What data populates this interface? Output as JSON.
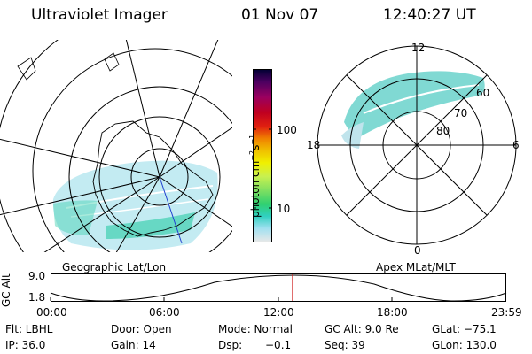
{
  "header": {
    "instrument": "Ultraviolet Imager",
    "date": "01 Nov 07",
    "time": "12:40:27 UT"
  },
  "left_panel": {
    "caption": "Geographic Lat/Lon"
  },
  "colorbar": {
    "label_main": "photon cm",
    "label_sup1": "−2",
    "label_mid": "s",
    "label_sup2": "−1",
    "tick_100": "100",
    "tick_10": "10",
    "scale": "log",
    "colors": [
      "#000033",
      "#4a0060",
      "#9a0060",
      "#c00020",
      "#e02010",
      "#f08000",
      "#f0c000",
      "#f0f000",
      "#c8f050",
      "#80e060",
      "#30d070",
      "#30d0c0",
      "#60d8e0",
      "#a0e0f0",
      "#e0e0e0"
    ]
  },
  "right_panel": {
    "caption": "Apex MLat/MLT",
    "mlt_labels": [
      "12",
      "18",
      "6",
      "0"
    ],
    "mlat_labels": [
      "60",
      "70",
      "80"
    ]
  },
  "altitude_strip": {
    "ylabel": "GC Alt",
    "y_top": "9.0",
    "y_bottom": "1.8",
    "x_ticks": [
      "00:00",
      "06:00",
      "12:00",
      "18:00",
      "23:59"
    ],
    "marker_color": "#d02020"
  },
  "info": {
    "flt": "Flt: LBHL",
    "ip": "IP: 36.0",
    "door": "Door: Open",
    "gain": "Gain: 14",
    "mode": "Mode: Normal",
    "dsp": "Dsp:",
    "dsp_val": "−0.1",
    "gcalt": "GC Alt: 9.0 Re",
    "seq": "Seq: 39",
    "glat": "GLat: −75.1",
    "glon": "GLon: 130.0"
  }
}
